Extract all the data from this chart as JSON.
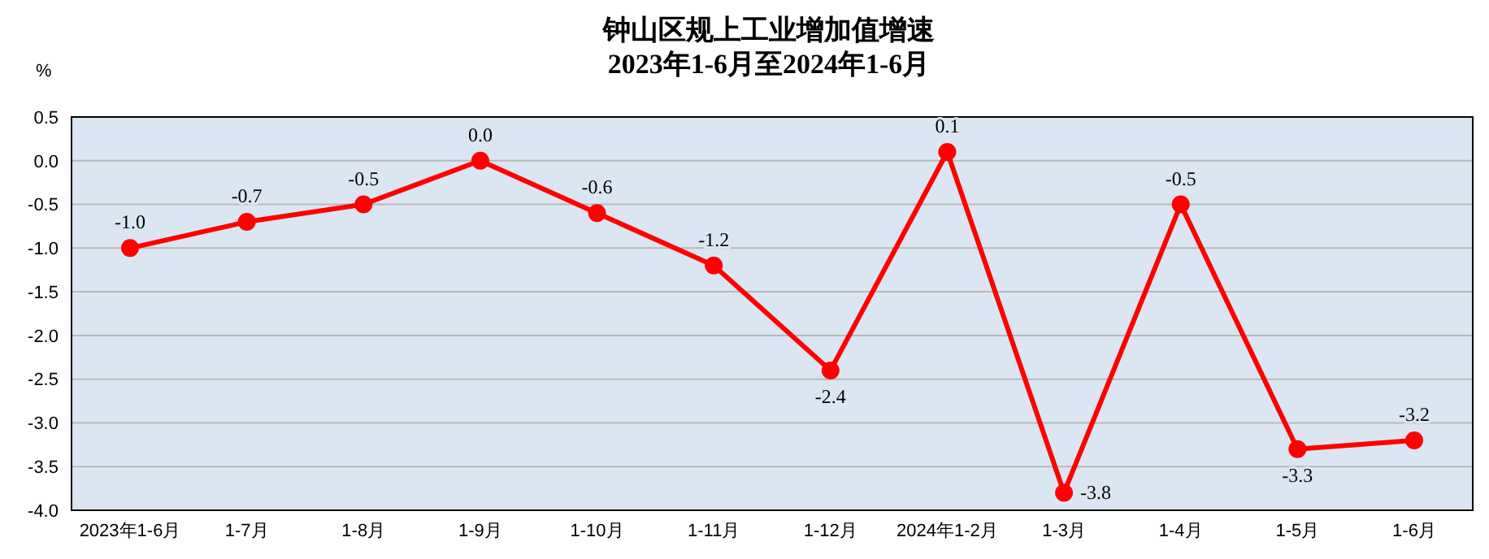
{
  "chart_data": {
    "type": "line",
    "title": "钟山区规上工业增加值增速",
    "subtitle": "2023年1-6月至2024年1-6月",
    "ylabel": "%",
    "categories": [
      "2023年1-6月",
      "1-7月",
      "1-8月",
      "1-9月",
      "1-10月",
      "1-11月",
      "1-12月",
      "2024年1-2月",
      "1-3月",
      "1-4月",
      "1-5月",
      "1-6月"
    ],
    "series": [
      {
        "color": "#ff0000",
        "values": [
          -1.0,
          -0.7,
          -0.5,
          0.0,
          -0.6,
          -1.2,
          -2.4,
          0.1,
          -3.8,
          -0.5,
          -3.3,
          -3.2
        ],
        "value_labels": [
          "-1.0",
          "-0.7",
          "-0.5",
          "0.0",
          "-0.6",
          "-1.2",
          "-2.4",
          "0.1",
          "-3.8",
          "-0.5",
          "-3.3",
          "-3.2"
        ]
      }
    ],
    "ylim": [
      -4,
      0.5
    ],
    "yticks": [
      {
        "value": 0.5,
        "label": "0.5"
      },
      {
        "value": 0,
        "label": "0.0"
      },
      {
        "value": -0.5,
        "label": "-0.5"
      },
      {
        "value": -1,
        "label": "-1.0"
      },
      {
        "value": -1.5,
        "label": "-1.5"
      },
      {
        "value": -2,
        "label": "-2.0"
      },
      {
        "value": -2.5,
        "label": "-2.5"
      },
      {
        "value": -3,
        "label": "-3.0"
      },
      {
        "value": -3.5,
        "label": "-3.5"
      },
      {
        "value": -4,
        "label": "-4.0"
      }
    ],
    "grid": "y",
    "legend": false,
    "marker": "circle",
    "line_style": "solid"
  }
}
